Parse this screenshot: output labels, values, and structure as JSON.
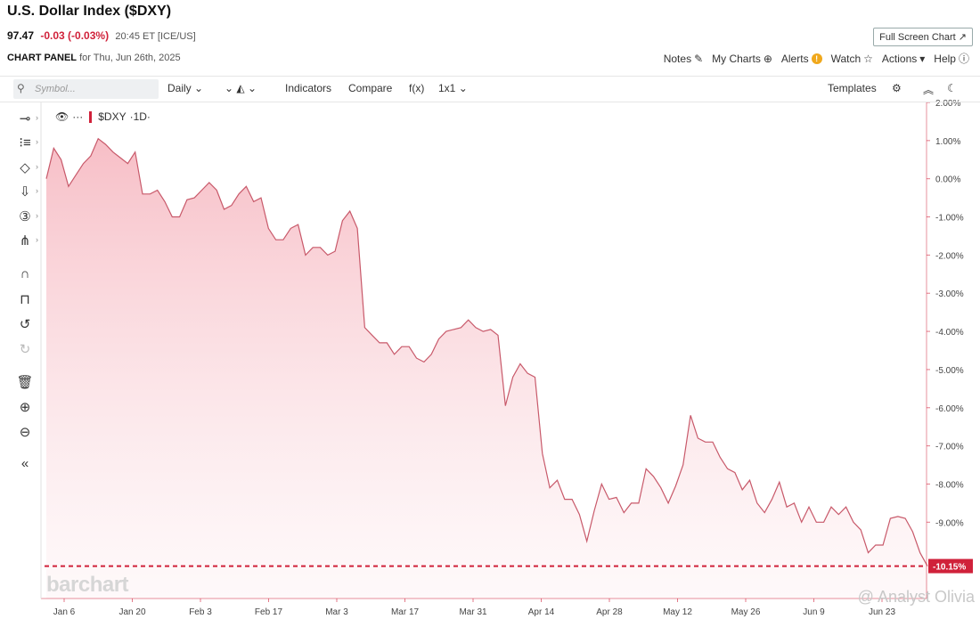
{
  "header": {
    "title": "U.S. Dollar Index ($DXY)",
    "last": "97.47",
    "change": "-0.03 (-0.03%)",
    "meta": "20:45 ET [ICE/US]",
    "fullscreen_label": "Full Screen Chart ↗",
    "panel_label": "CHART PANEL",
    "panel_date": "for Thu, Jun 26th, 2025"
  },
  "top_links": {
    "notes": "Notes",
    "my_charts": "My Charts",
    "alerts": "Alerts",
    "watch": "Watch",
    "actions": "Actions",
    "help": "Help"
  },
  "toolbar": {
    "symbol_placeholder": "Symbol...",
    "interval": "Daily",
    "indicators": "Indicators",
    "compare": "Compare",
    "fx": "f(x)",
    "layout": "1x1",
    "templates": "Templates"
  },
  "legend": {
    "symbol": "$DXY",
    "interval": "·1D·"
  },
  "logo": "barchart",
  "watermark": "@ Analyst Olivia",
  "colors": {
    "line": "#d0213a",
    "fill": "#f6c3ca",
    "accent": "#d0213a"
  },
  "chart_data": {
    "type": "area",
    "ylabel_unit": "%",
    "ylim": [
      -11.0,
      2.0
    ],
    "y_ticks": [
      "2.00%",
      "1.00%",
      "0.00%",
      "-1.00%",
      "-2.00%",
      "-3.00%",
      "-4.00%",
      "-5.00%",
      "-6.00%",
      "-7.00%",
      "-8.00%",
      "-9.00%"
    ],
    "x_ticks": [
      "Jan 6",
      "Jan 20",
      "Feb 3",
      "Feb 17",
      "Mar 3",
      "Mar 17",
      "Mar 31",
      "Apr 14",
      "Apr 28",
      "May 12",
      "May 26",
      "Jun 9",
      "Jun 23"
    ],
    "last_value_label": "-10.15%",
    "last_value": -10.15,
    "grid": false,
    "series": [
      {
        "values": [
          0.0,
          0.8,
          0.5,
          -0.2,
          0.1,
          0.4,
          0.6,
          1.05,
          0.9,
          0.7,
          0.55,
          0.4,
          0.7,
          -0.4,
          -0.4,
          -0.3,
          -0.6,
          -1.0,
          -1.0,
          -0.55,
          -0.5,
          -0.3,
          -0.1,
          -0.3,
          -0.8,
          -0.7,
          -0.4,
          -0.2,
          -0.6,
          -0.5,
          -1.3,
          -1.6,
          -1.6,
          -1.3,
          -1.2,
          -2.0,
          -1.8,
          -1.8,
          -2.0,
          -1.9,
          -1.1,
          -0.85,
          -1.3,
          -3.9,
          -4.1,
          -4.3,
          -4.3,
          -4.6,
          -4.4,
          -4.4,
          -4.7,
          -4.8,
          -4.6,
          -4.2,
          -4.0,
          -3.95,
          -3.9,
          -3.7,
          -3.9,
          -4.0,
          -3.95,
          -4.1,
          -5.95,
          -5.2,
          -4.85,
          -5.1,
          -5.2,
          -7.2,
          -8.1,
          -7.9,
          -8.4,
          -8.4,
          -8.8,
          -9.5,
          -8.7,
          -8.0,
          -8.4,
          -8.35,
          -8.75,
          -8.5,
          -8.5,
          -7.6,
          -7.8,
          -8.1,
          -8.5,
          -8.05,
          -7.5,
          -6.2,
          -6.8,
          -6.9,
          -6.9,
          -7.3,
          -7.6,
          -7.7,
          -8.15,
          -7.9,
          -8.5,
          -8.75,
          -8.4,
          -7.95,
          -8.6,
          -8.5,
          -9.0,
          -8.6,
          -9.0,
          -9.0,
          -8.6,
          -8.8,
          -8.6,
          -9.0,
          -9.2,
          -9.8,
          -9.6,
          -9.6,
          -8.9,
          -8.85,
          -8.9,
          -9.25,
          -9.8,
          -10.15
        ]
      }
    ]
  }
}
